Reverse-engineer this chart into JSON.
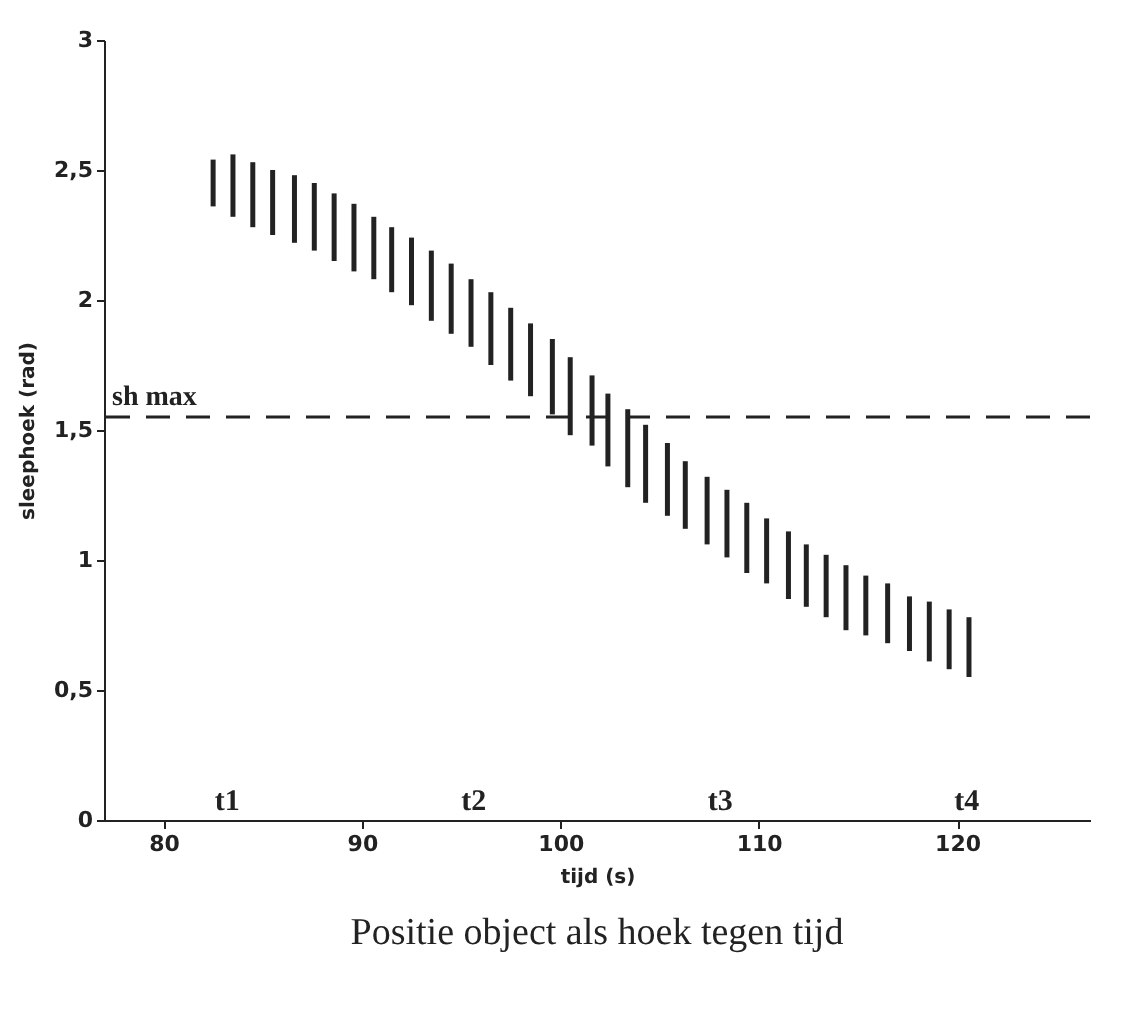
{
  "chart_data": {
    "type": "bar",
    "title": "Positie object als hoek tegen tijd",
    "xlabel": "tijd (s)",
    "ylabel": "sleephoek (rad)",
    "x": [
      82.5,
      83.5,
      84.5,
      85.5,
      86.6,
      87.6,
      88.6,
      89.6,
      90.6,
      91.5,
      92.5,
      93.5,
      94.5,
      95.5,
      96.5,
      97.5,
      98.5,
      99.6,
      100.5,
      101.6,
      102.4,
      103.4,
      104.3,
      105.4,
      106.3,
      107.4,
      108.4,
      109.4,
      110.4,
      111.5,
      112.4,
      113.4,
      114.4,
      115.4,
      116.5,
      117.6,
      118.6,
      119.6,
      120.6
    ],
    "base": [
      2.36,
      2.32,
      2.28,
      2.25,
      2.22,
      2.19,
      2.15,
      2.11,
      2.08,
      2.03,
      1.98,
      1.92,
      1.87,
      1.82,
      1.75,
      1.69,
      1.63,
      1.56,
      1.48,
      1.44,
      1.36,
      1.28,
      1.22,
      1.17,
      1.12,
      1.06,
      1.01,
      0.95,
      0.91,
      0.85,
      0.82,
      0.78,
      0.73,
      0.71,
      0.68,
      0.65,
      0.61,
      0.58,
      0.55
    ],
    "values": [
      0.18,
      0.24,
      0.25,
      0.25,
      0.26,
      0.26,
      0.26,
      0.26,
      0.24,
      0.25,
      0.26,
      0.27,
      0.27,
      0.26,
      0.28,
      0.28,
      0.28,
      0.29,
      0.3,
      0.27,
      0.28,
      0.3,
      0.3,
      0.28,
      0.26,
      0.26,
      0.26,
      0.27,
      0.25,
      0.26,
      0.24,
      0.24,
      0.25,
      0.23,
      0.23,
      0.21,
      0.23,
      0.23,
      0.23
    ],
    "color": "#222222",
    "xlim": [
      77,
      126.7
    ],
    "xticks": [
      80,
      90,
      100,
      110,
      120
    ],
    "ylim": [
      0,
      3
    ],
    "yticks": [
      0,
      {
        "value": 0.5,
        "label": "0,5"
      },
      1,
      {
        "value": 1.5,
        "label": "1,5"
      },
      2,
      {
        "value": 2.5,
        "label": "2,5"
      },
      3
    ],
    "ref_lines": [
      {
        "axis": "y",
        "value": 1.55,
        "label": "sh max",
        "color": "#222222",
        "line_style": "dashed"
      }
    ],
    "annotations": [
      "t1",
      "t2",
      "t3",
      "t4"
    ],
    "grid": false
  }
}
